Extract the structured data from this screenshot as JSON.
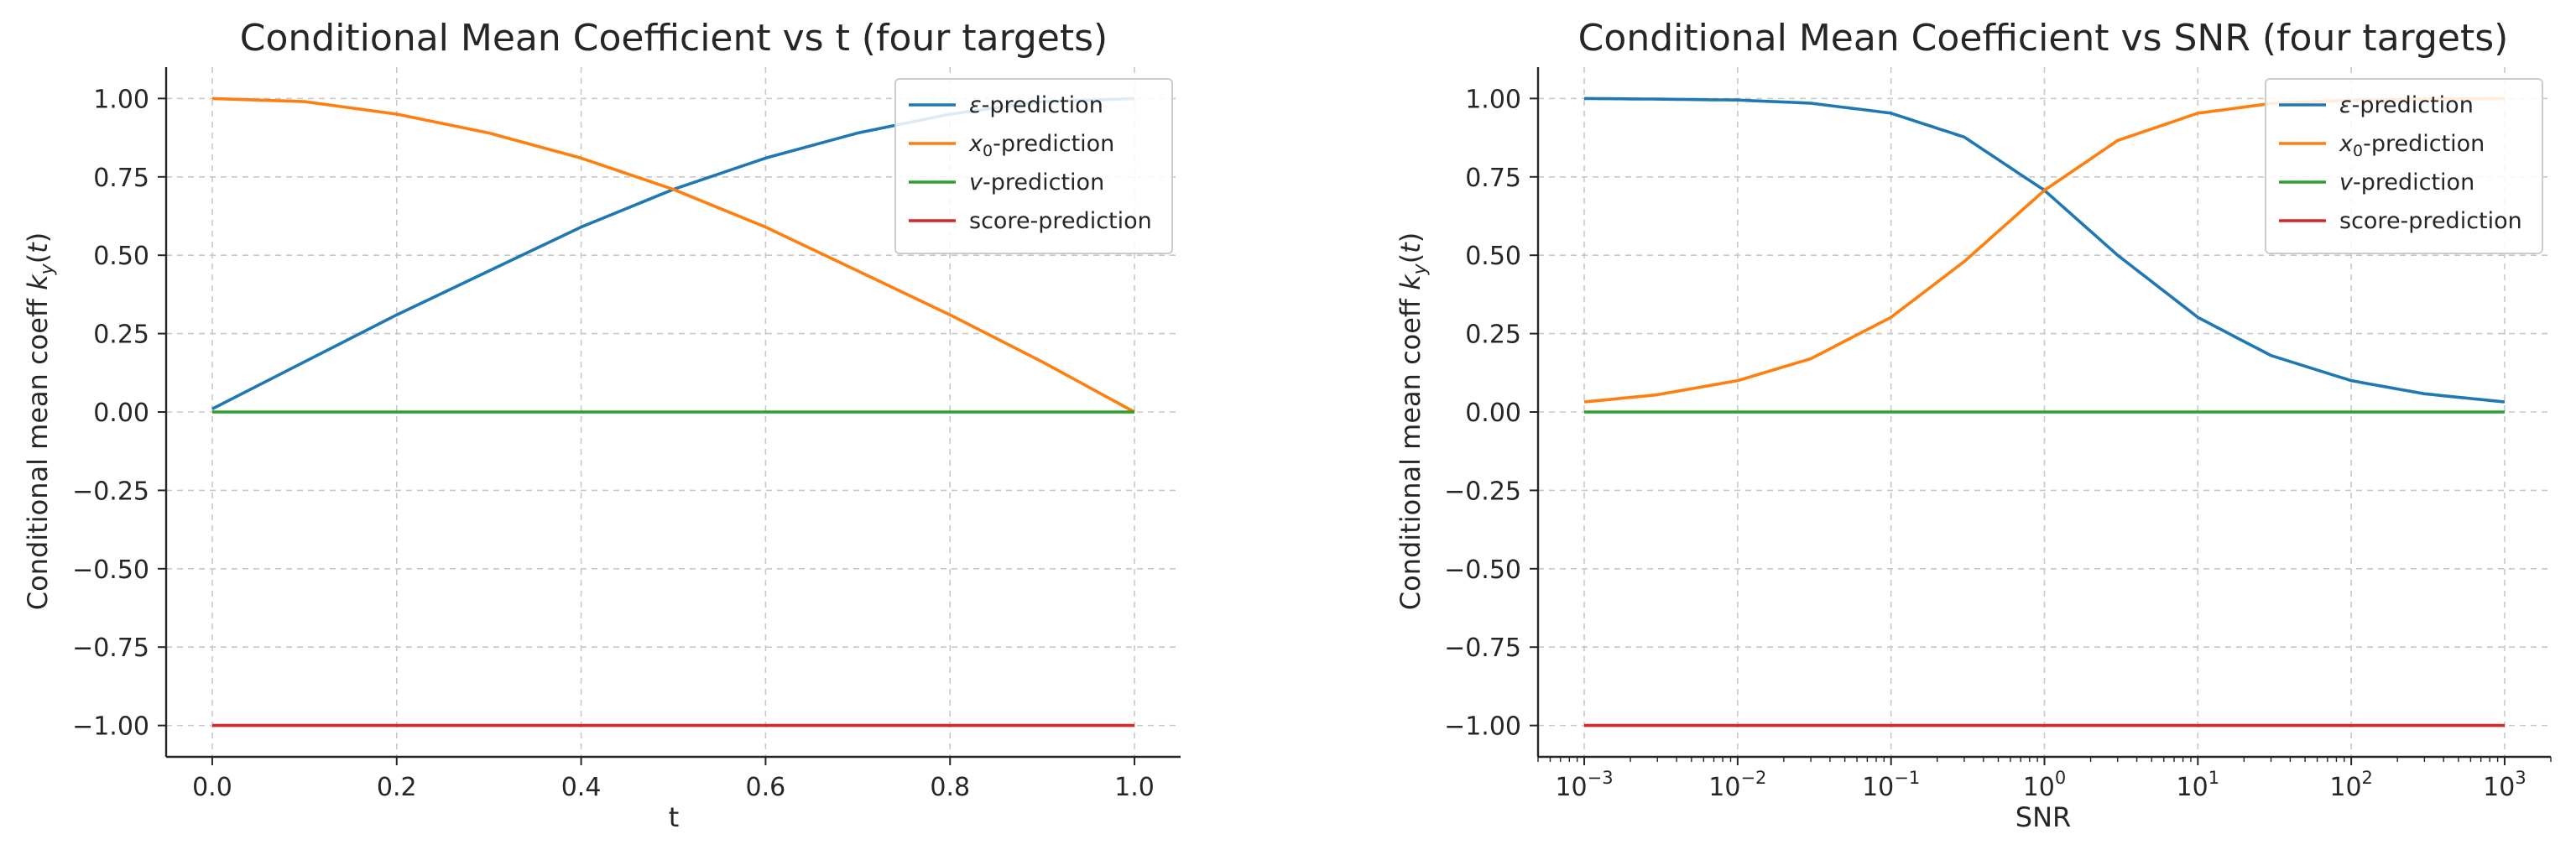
{
  "chart_data": [
    {
      "type": "line",
      "title": "Conditional Mean Coefficient vs t (four targets)",
      "xlabel": "t",
      "ylabel": "Conditional mean coeff k_y(t)",
      "xscale": "linear",
      "xlim": [
        -0.05,
        1.05
      ],
      "ylim": [
        -1.1,
        1.1
      ],
      "xticks": [
        0.0,
        0.2,
        0.4,
        0.6,
        0.8,
        1.0
      ],
      "xtick_labels": [
        "0.0",
        "0.2",
        "0.4",
        "0.6",
        "0.8",
        "1.0"
      ],
      "yticks": [
        1.0,
        0.75,
        0.5,
        0.25,
        0.0,
        -0.25,
        -0.5,
        -0.75,
        -1.0
      ],
      "ytick_labels": [
        "1.00",
        "0.75",
        "0.50",
        "0.25",
        "0.00",
        "−0.25",
        "−0.50",
        "−0.75",
        "−1.00"
      ],
      "grid": true,
      "legend_position": "top-right",
      "x": [
        0.0,
        0.1,
        0.2,
        0.3,
        0.4,
        0.5,
        0.6,
        0.7,
        0.8,
        0.9,
        1.0
      ],
      "series": [
        {
          "name": "ε-prediction",
          "color": "#1f77b4",
          "values": [
            0.01,
            0.16,
            0.31,
            0.45,
            0.59,
            0.71,
            0.81,
            0.89,
            0.95,
            0.99,
            1.0
          ]
        },
        {
          "name": "x₀-prediction",
          "color": "#ff7f0e",
          "values": [
            1.0,
            0.99,
            0.95,
            0.89,
            0.81,
            0.71,
            0.59,
            0.45,
            0.31,
            0.16,
            0.0
          ]
        },
        {
          "name": "v-prediction",
          "color": "#2ca02c",
          "values": [
            0.0,
            0.0,
            0.0,
            0.0,
            0.0,
            0.0,
            0.0,
            0.0,
            0.0,
            0.0,
            0.0
          ]
        },
        {
          "name": "score-prediction",
          "color": "#d62728",
          "values": [
            -1.0,
            -1.0,
            -1.0,
            -1.0,
            -1.0,
            -1.0,
            -1.0,
            -1.0,
            -1.0,
            -1.0,
            -1.0
          ]
        }
      ]
    },
    {
      "type": "line",
      "title": "Conditional Mean Coefficient vs SNR (four targets)",
      "xlabel": "SNR",
      "ylabel": "Conditional mean coeff k_y(t)",
      "xscale": "log",
      "xlim": [
        0.0005,
        2000
      ],
      "ylim": [
        -1.1,
        1.1
      ],
      "xticks": [
        0.001,
        0.01,
        0.1,
        1,
        10,
        100,
        1000
      ],
      "xtick_labels": [
        "10⁻³",
        "10⁻²",
        "10⁻¹",
        "10⁰",
        "10¹",
        "10²",
        "10³"
      ],
      "yticks": [
        1.0,
        0.75,
        0.5,
        0.25,
        0.0,
        -0.25,
        -0.5,
        -0.75,
        -1.0
      ],
      "ytick_labels": [
        "1.00",
        "0.75",
        "0.50",
        "0.25",
        "0.00",
        "−0.25",
        "−0.50",
        "−0.75",
        "−1.00"
      ],
      "grid": true,
      "legend_position": "top-right",
      "x": [
        0.001,
        0.003,
        0.01,
        0.03,
        0.1,
        0.3,
        1,
        3,
        10,
        30,
        100,
        300,
        1000
      ],
      "series": [
        {
          "name": "ε-prediction",
          "color": "#1f77b4",
          "values": [
            1.0,
            0.998,
            0.995,
            0.985,
            0.953,
            0.877,
            0.707,
            0.5,
            0.302,
            0.18,
            0.1,
            0.058,
            0.032
          ]
        },
        {
          "name": "x₀-prediction",
          "color": "#ff7f0e",
          "values": [
            0.032,
            0.055,
            0.1,
            0.17,
            0.302,
            0.48,
            0.707,
            0.866,
            0.953,
            0.984,
            0.995,
            0.998,
            1.0
          ]
        },
        {
          "name": "v-prediction",
          "color": "#2ca02c",
          "values": [
            0.0,
            0.0,
            0.0,
            0.0,
            0.0,
            0.0,
            0.0,
            0.0,
            0.0,
            0.0,
            0.0,
            0.0,
            0.0
          ]
        },
        {
          "name": "score-prediction",
          "color": "#d62728",
          "values": [
            -1.0,
            -1.0,
            -1.0,
            -1.0,
            -1.0,
            -1.0,
            -1.0,
            -1.0,
            -1.0,
            -1.0,
            -1.0,
            -1.0,
            -1.0
          ]
        }
      ]
    }
  ]
}
